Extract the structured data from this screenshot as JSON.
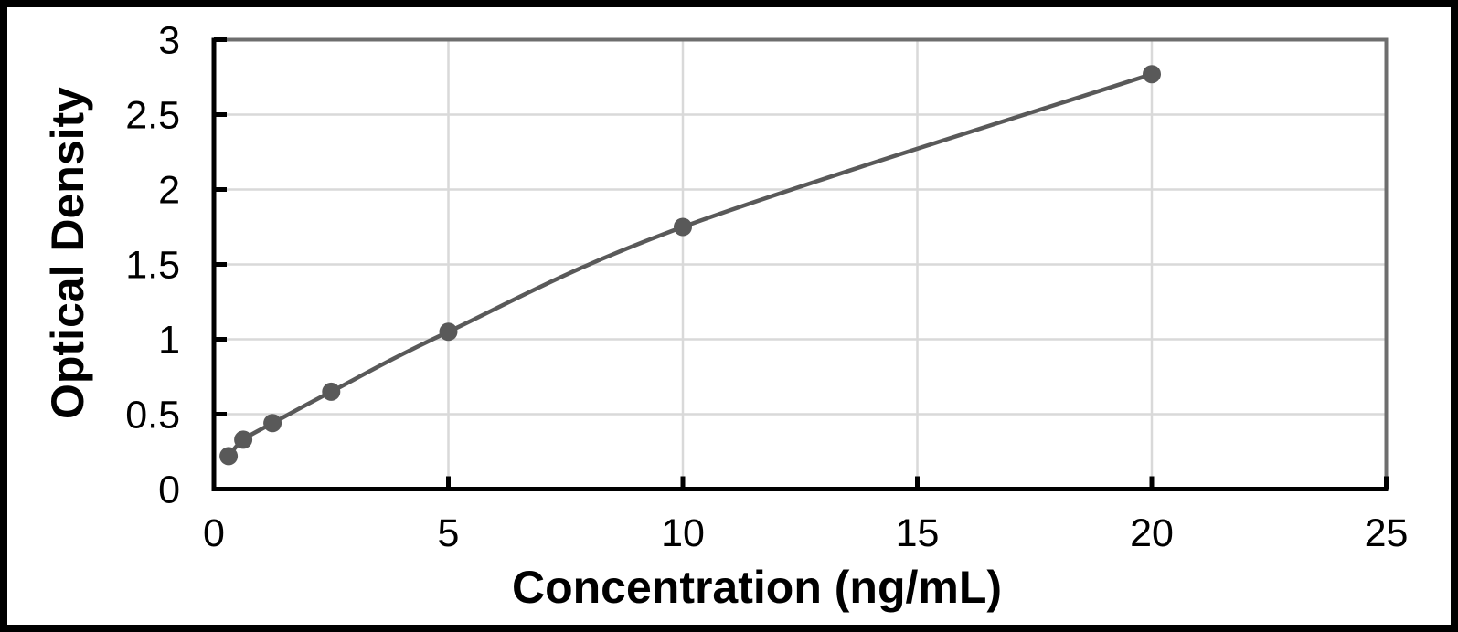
{
  "chart_data": {
    "type": "scatter",
    "subtype": "smooth-line-with-markers",
    "xlabel": "Concentration (ng/mL)",
    "ylabel": "Optical Density",
    "x": [
      0.313,
      0.625,
      1.25,
      2.5,
      5,
      10,
      20
    ],
    "y": [
      0.22,
      0.33,
      0.44,
      0.65,
      1.05,
      1.75,
      2.77
    ],
    "xlim": [
      0,
      25
    ],
    "ylim": [
      0,
      3
    ],
    "x_ticks": [
      0,
      5,
      10,
      15,
      20,
      25
    ],
    "y_ticks": [
      0,
      0.5,
      1,
      1.5,
      2,
      2.5,
      3
    ],
    "grid": true,
    "legend": "none",
    "colors": {
      "series": "#595959",
      "gridline": "#d9d9d9",
      "axis": "#000000",
      "plot_border": "#6e6e6e",
      "text": "#000000",
      "background": "#ffffff",
      "frame": "#000000"
    }
  }
}
